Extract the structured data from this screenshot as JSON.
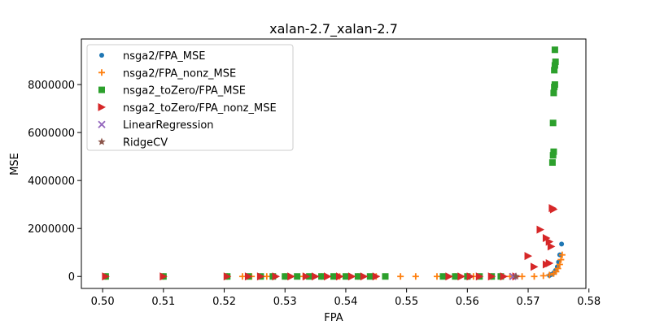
{
  "chart_data": {
    "type": "scatter",
    "title": "xalan-2.7_xalan-2.7",
    "xlabel": "FPA",
    "ylabel": "MSE",
    "xlim": [
      0.4965,
      0.5795
    ],
    "ylim": [
      -500000,
      9900000
    ],
    "xticks": [
      0.5,
      0.51,
      0.52,
      0.53,
      0.54,
      0.55,
      0.56,
      0.57,
      0.58
    ],
    "xtick_labels": [
      "0.50",
      "0.51",
      "0.52",
      "0.53",
      "0.54",
      "0.55",
      "0.56",
      "0.57",
      "0.58"
    ],
    "yticks": [
      0,
      2000000,
      4000000,
      6000000,
      8000000
    ],
    "ytick_labels": [
      "0",
      "2000000",
      "4000000",
      "6000000",
      "8000000"
    ],
    "grid": false,
    "legend_position": "top-left",
    "series": [
      {
        "name": "nsga2/FPA_MSE",
        "marker": "circle",
        "color": "#1f77b4",
        "points": [
          [
            0.5755,
            1350000
          ],
          [
            0.5752,
            900000
          ],
          [
            0.575,
            600000
          ],
          [
            0.5748,
            400000
          ],
          [
            0.5745,
            250000
          ],
          [
            0.5742,
            150000
          ],
          [
            0.5738,
            80000
          ],
          [
            0.5735,
            40000
          ]
        ]
      },
      {
        "name": "nsga2/FPA_nonz_MSE",
        "marker": "plus",
        "color": "#ff7f0e",
        "points": [
          [
            0.5005,
            0
          ],
          [
            0.51,
            0
          ],
          [
            0.5205,
            0
          ],
          [
            0.523,
            0
          ],
          [
            0.5245,
            0
          ],
          [
            0.527,
            0
          ],
          [
            0.53,
            0
          ],
          [
            0.533,
            0
          ],
          [
            0.536,
            0
          ],
          [
            0.539,
            0
          ],
          [
            0.542,
            0
          ],
          [
            0.545,
            0
          ],
          [
            0.549,
            0
          ],
          [
            0.5515,
            0
          ],
          [
            0.555,
            0
          ],
          [
            0.558,
            0
          ],
          [
            0.561,
            0
          ],
          [
            0.564,
            0
          ],
          [
            0.567,
            0
          ],
          [
            0.569,
            0
          ],
          [
            0.571,
            0
          ],
          [
            0.5725,
            30000
          ],
          [
            0.5735,
            60000
          ],
          [
            0.5742,
            120000
          ],
          [
            0.5746,
            200000
          ],
          [
            0.5749,
            330000
          ],
          [
            0.5752,
            500000
          ],
          [
            0.5754,
            700000
          ],
          [
            0.5756,
            900000
          ]
        ]
      },
      {
        "name": "nsga2_toZero/FPA_MSE",
        "marker": "square",
        "color": "#2ca02c",
        "points": [
          [
            0.5005,
            0
          ],
          [
            0.51,
            0
          ],
          [
            0.5205,
            0
          ],
          [
            0.524,
            0
          ],
          [
            0.526,
            0
          ],
          [
            0.528,
            0
          ],
          [
            0.53,
            0
          ],
          [
            0.532,
            0
          ],
          [
            0.534,
            0
          ],
          [
            0.536,
            0
          ],
          [
            0.538,
            0
          ],
          [
            0.54,
            0
          ],
          [
            0.542,
            0
          ],
          [
            0.544,
            0
          ],
          [
            0.5465,
            0
          ],
          [
            0.556,
            0
          ],
          [
            0.558,
            0
          ],
          [
            0.56,
            0
          ],
          [
            0.562,
            0
          ],
          [
            0.564,
            0
          ],
          [
            0.5655,
            0
          ],
          [
            0.574,
            4750000
          ],
          [
            0.5741,
            5050000
          ],
          [
            0.5742,
            5200000
          ],
          [
            0.5741,
            6400000
          ],
          [
            0.5742,
            7650000
          ],
          [
            0.5743,
            7900000
          ],
          [
            0.5744,
            8000000
          ],
          [
            0.5743,
            8600000
          ],
          [
            0.5744,
            8800000
          ],
          [
            0.5745,
            8950000
          ],
          [
            0.5744,
            9450000
          ]
        ]
      },
      {
        "name": "nsga2_toZero/FPA_nonz_MSE",
        "marker": "triangle-right",
        "color": "#d62728",
        "points": [
          [
            0.5005,
            0
          ],
          [
            0.51,
            0
          ],
          [
            0.5205,
            0
          ],
          [
            0.524,
            0
          ],
          [
            0.526,
            0
          ],
          [
            0.5285,
            0
          ],
          [
            0.531,
            0
          ],
          [
            0.5335,
            0
          ],
          [
            0.535,
            0
          ],
          [
            0.537,
            0
          ],
          [
            0.539,
            0
          ],
          [
            0.541,
            0
          ],
          [
            0.543,
            0
          ],
          [
            0.545,
            0
          ],
          [
            0.557,
            0
          ],
          [
            0.559,
            0
          ],
          [
            0.5605,
            0
          ],
          [
            0.562,
            0
          ],
          [
            0.564,
            0
          ],
          [
            0.566,
            0
          ],
          [
            0.568,
            0
          ],
          [
            0.57,
            850000
          ],
          [
            0.571,
            400000
          ],
          [
            0.572,
            1950000
          ],
          [
            0.573,
            1600000
          ],
          [
            0.5735,
            1450000
          ],
          [
            0.5738,
            1250000
          ],
          [
            0.573,
            500000
          ],
          [
            0.5735,
            550000
          ],
          [
            0.574,
            2850000
          ],
          [
            0.5742,
            2800000
          ]
        ]
      },
      {
        "name": "LinearRegression",
        "marker": "x",
        "color": "#9467bd",
        "points": [
          [
            0.5675,
            0
          ]
        ]
      },
      {
        "name": "RidgeCV",
        "marker": "star",
        "color": "#8c564b",
        "points": [
          [
            0.568,
            0
          ]
        ]
      }
    ]
  }
}
